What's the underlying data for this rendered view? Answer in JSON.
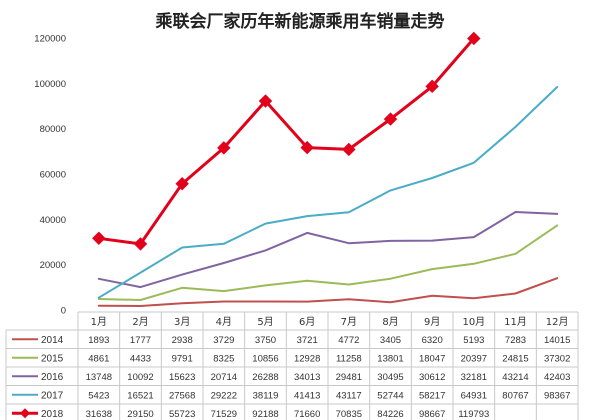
{
  "chart_data": {
    "type": "line",
    "title": "乘联会厂家历年新能源乘用车销量走势",
    "categories": [
      "1月",
      "2月",
      "3月",
      "4月",
      "5月",
      "6月",
      "7月",
      "8月",
      "9月",
      "10月",
      "11月",
      "12月"
    ],
    "ylim": [
      0,
      120000
    ],
    "yticks": [
      "0",
      "20000",
      "40000",
      "60000",
      "80000",
      "100000",
      "120000"
    ],
    "series": [
      {
        "name": "2014",
        "color": "#C0504D",
        "values": [
          1893,
          1777,
          2938,
          3729,
          3750,
          3721,
          4772,
          3405,
          6320,
          5193,
          7283,
          14015
        ]
      },
      {
        "name": "2015",
        "color": "#9BBB59",
        "values": [
          4861,
          4433,
          9791,
          8325,
          10856,
          12928,
          11258,
          13801,
          18047,
          20397,
          24815,
          37302
        ]
      },
      {
        "name": "2016",
        "color": "#8064A2",
        "values": [
          13748,
          10092,
          15623,
          20714,
          26288,
          34013,
          29481,
          30495,
          30612,
          32181,
          43214,
          42403
        ]
      },
      {
        "name": "2017",
        "color": "#4BACC6",
        "values": [
          5423,
          16521,
          27568,
          29222,
          38119,
          41413,
          43117,
          52744,
          58217,
          64931,
          80767,
          98367
        ]
      },
      {
        "name": "2018",
        "color": "#E3001B",
        "marker": "diamond",
        "values": [
          31638,
          29150,
          55723,
          71529,
          92188,
          71660,
          70835,
          84226,
          98667,
          119793,
          null,
          null
        ]
      }
    ],
    "legend": "table-below",
    "grid": false
  }
}
